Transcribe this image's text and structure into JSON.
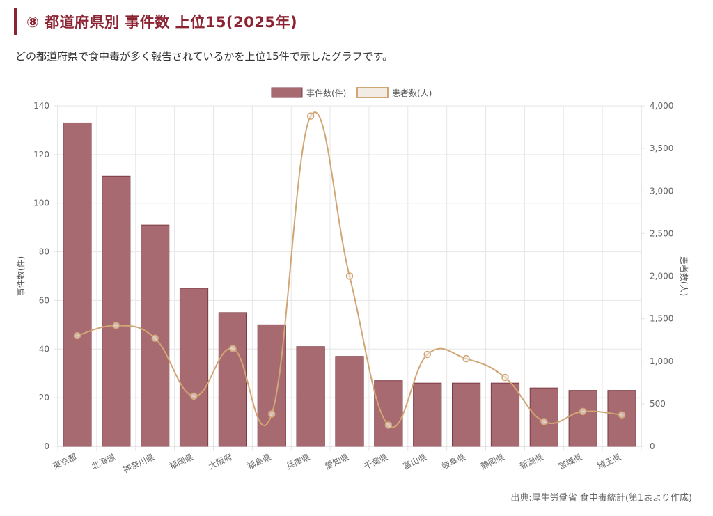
{
  "header": {
    "title": "⑧ 都道府県別 事件数 上位15(2025年)",
    "description": "どの都道府県で食中毒が多く報告されているかを上位15件で示したグラフです。",
    "source": "出典:厚生労働省 食中毒統計(第1表より作成)"
  },
  "colors": {
    "accent": "#8b2332",
    "bar_fill": "#a76a70",
    "bar_stroke": "#7e3a44",
    "line": "#d0a675",
    "line_fill": "#f3ece5",
    "grid": "#e6e6e6"
  },
  "chart_data": {
    "type": "bar",
    "categories": [
      "東京都",
      "北海道",
      "神奈川県",
      "福岡県",
      "大阪府",
      "福島県",
      "兵庫県",
      "愛知県",
      "千葉県",
      "富山県",
      "岐阜県",
      "静岡県",
      "新潟県",
      "宮城県",
      "埼玉県"
    ],
    "series": [
      {
        "name": "事件数(件)",
        "type": "bar",
        "axis": "left",
        "values": [
          133,
          111,
          91,
          65,
          55,
          50,
          41,
          37,
          27,
          26,
          26,
          26,
          24,
          23,
          23
        ]
      },
      {
        "name": "患者数(人)",
        "type": "line",
        "axis": "right",
        "values": [
          1300,
          1420,
          1270,
          590,
          1150,
          380,
          3880,
          2000,
          250,
          1080,
          1030,
          810,
          290,
          410,
          370
        ]
      }
    ],
    "ylabel": "事件数(件)",
    "y2label": "患者数(人)",
    "ylim": [
      0,
      140
    ],
    "y2lim": [
      0,
      4000
    ],
    "yticks": [
      "0",
      "20",
      "40",
      "60",
      "80",
      "100",
      "120",
      "140"
    ],
    "y2ticks": [
      "0",
      "500",
      "1,000",
      "1,500",
      "2,000",
      "2,500",
      "3,000",
      "3,500",
      "4,000"
    ],
    "legend": "top-center",
    "grid": true
  }
}
